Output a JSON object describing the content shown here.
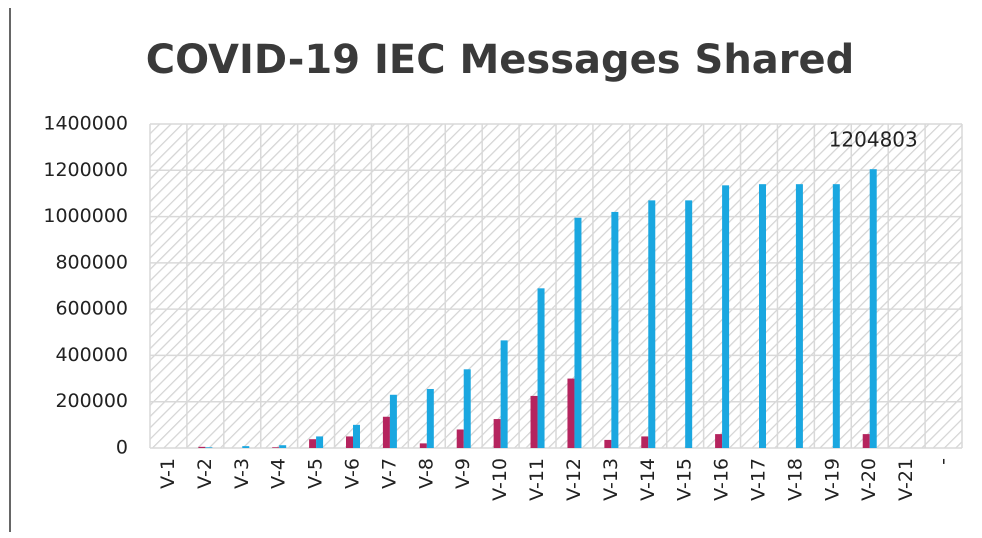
{
  "chart_data": {
    "type": "bar",
    "title": "COVID-19 IEC Messages Shared",
    "categories": [
      "V-1",
      "V-2",
      "V-3",
      "V-4",
      "V-5",
      "V-6",
      "V-7",
      "V-8",
      "V-9",
      "V-10",
      "V-11",
      "V-12",
      "V-13",
      "V-14",
      "V-15",
      "V-16",
      "V-17",
      "V-18",
      "V-19",
      "V-20",
      "V-21",
      "-"
    ],
    "series": [
      {
        "color": "#b5245e",
        "values": [
          0,
          5000,
          0,
          3000,
          38000,
          50000,
          135000,
          20000,
          80000,
          125000,
          225000,
          300000,
          35000,
          50000,
          0,
          60000,
          0,
          0,
          0,
          60000,
          0,
          0
        ]
      },
      {
        "color": "#1aa7e0",
        "values": [
          0,
          3000,
          8000,
          12000,
          50000,
          100000,
          230000,
          255000,
          340000,
          465000,
          690000,
          995000,
          1020000,
          1070000,
          1070000,
          1135000,
          1140000,
          1140000,
          1140000,
          1204803,
          0,
          0
        ],
        "value_labels": [
          null,
          null,
          null,
          null,
          null,
          null,
          null,
          null,
          null,
          null,
          null,
          null,
          null,
          null,
          null,
          null,
          null,
          null,
          null,
          "1204803",
          null,
          null
        ]
      }
    ],
    "ylim": [
      0,
      1400000
    ],
    "yticks": [
      0,
      200000,
      400000,
      600000,
      800000,
      1000000,
      1200000,
      1400000
    ],
    "grid": true
  }
}
